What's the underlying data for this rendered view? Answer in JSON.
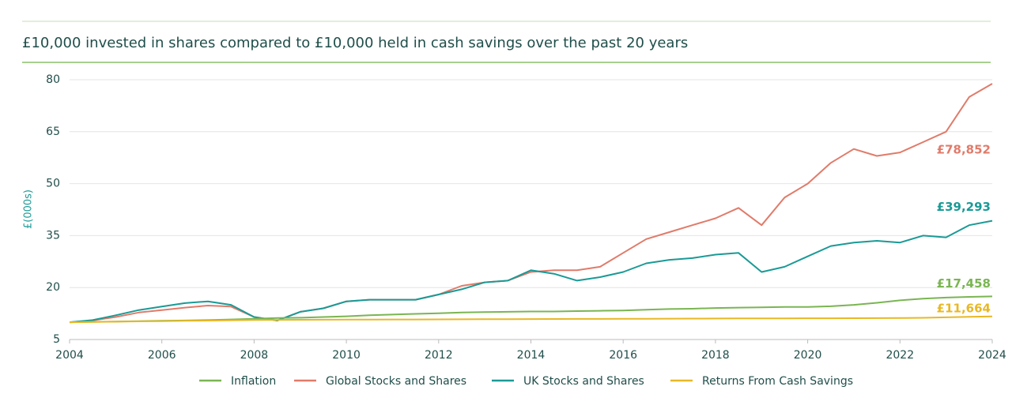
{
  "chart_data": {
    "type": "line",
    "title": "£10,000 invested in shares compared to £10,000 held in cash savings over the past 20 years",
    "y_label": "£(000s)",
    "x": [
      2004,
      2004.5,
      2005,
      2005.5,
      2006,
      2006.5,
      2007,
      2007.5,
      2008,
      2008.5,
      2009,
      2009.5,
      2010,
      2010.5,
      2011,
      2011.5,
      2012,
      2012.5,
      2013,
      2013.5,
      2014,
      2014.5,
      2015,
      2015.5,
      2016,
      2016.5,
      2017,
      2017.5,
      2018,
      2018.5,
      2019,
      2019.5,
      2020,
      2020.5,
      2021,
      2021.5,
      2022,
      2022.5,
      2023,
      2023.5,
      2024
    ],
    "xlim": [
      2004,
      2024
    ],
    "xticks": [
      2004,
      2006,
      2008,
      2010,
      2012,
      2014,
      2016,
      2018,
      2020,
      2022,
      2024
    ],
    "ylim": [
      5,
      80
    ],
    "yticks": [
      5,
      20,
      35,
      50,
      65,
      80
    ],
    "grid": true,
    "series": [
      {
        "name": "Inflation",
        "color": "#7ab552",
        "values": [
          10,
          10.1,
          10.2,
          10.3,
          10.4,
          10.5,
          10.6,
          10.8,
          11,
          11.2,
          11.3,
          11.5,
          11.7,
          12,
          12.2,
          12.4,
          12.6,
          12.8,
          12.9,
          13,
          13.1,
          13.1,
          13.2,
          13.3,
          13.4,
          13.6,
          13.8,
          13.9,
          14.1,
          14.2,
          14.3,
          14.4,
          14.4,
          14.6,
          15,
          15.6,
          16.3,
          16.8,
          17.1,
          17.3,
          17.458
        ],
        "value_labels": [
          null,
          null,
          null,
          null,
          null,
          null,
          null,
          null,
          null,
          null,
          null,
          null,
          null,
          null,
          null,
          null,
          null,
          null,
          null,
          null,
          null,
          null,
          null,
          null,
          null,
          null,
          null,
          null,
          null,
          null,
          null,
          null,
          null,
          null,
          null,
          null,
          null,
          null,
          null,
          null,
          "£17,458"
        ]
      },
      {
        "name": "Global Stocks and Shares",
        "color": "#e07b6a",
        "values": [
          10,
          10.5,
          11.5,
          12.8,
          13.5,
          14.2,
          14.8,
          14.5,
          11.5,
          10.5,
          13,
          14,
          16,
          16.5,
          16.5,
          16.5,
          18,
          20.5,
          21.5,
          22,
          24.5,
          25,
          25,
          26,
          30,
          34,
          36,
          38,
          40,
          43,
          38,
          46,
          50,
          56,
          60,
          58,
          59,
          62,
          65,
          75,
          78.852
        ],
        "value_labels": [
          null,
          null,
          null,
          null,
          null,
          null,
          null,
          null,
          null,
          null,
          null,
          null,
          null,
          null,
          null,
          null,
          null,
          null,
          null,
          null,
          null,
          null,
          null,
          null,
          null,
          null,
          null,
          null,
          null,
          null,
          null,
          null,
          null,
          null,
          null,
          null,
          null,
          null,
          null,
          null,
          "£78,852"
        ]
      },
      {
        "name": "UK Stocks and Shares",
        "color": "#1a9a96",
        "values": [
          10,
          10.6,
          12,
          13.5,
          14.5,
          15.5,
          16,
          15,
          11.5,
          10.5,
          13,
          14,
          16,
          16.5,
          16.5,
          16.5,
          18,
          19.5,
          21.5,
          22,
          25,
          24,
          22,
          23,
          24.5,
          27,
          28,
          28.5,
          29.5,
          30,
          24.5,
          26,
          29,
          32,
          33,
          33.5,
          33,
          35,
          34.5,
          38,
          39.293
        ],
        "value_labels": [
          null,
          null,
          null,
          null,
          null,
          null,
          null,
          null,
          null,
          null,
          null,
          null,
          null,
          null,
          null,
          null,
          null,
          null,
          null,
          null,
          null,
          null,
          null,
          null,
          null,
          null,
          null,
          null,
          null,
          null,
          null,
          null,
          null,
          null,
          null,
          null,
          null,
          null,
          null,
          null,
          "£39,293"
        ]
      },
      {
        "name": "Returns From Cash Savings",
        "color": "#e8b824",
        "values": [
          10,
          10.08,
          10.16,
          10.24,
          10.32,
          10.4,
          10.48,
          10.56,
          10.63,
          10.67,
          10.7,
          10.72,
          10.74,
          10.76,
          10.78,
          10.8,
          10.82,
          10.84,
          10.86,
          10.88,
          10.9,
          10.92,
          10.94,
          10.96,
          10.98,
          11,
          11.02,
          11.04,
          11.06,
          11.08,
          11.1,
          11.12,
          11.13,
          11.14,
          11.15,
          11.17,
          11.2,
          11.28,
          11.4,
          11.55,
          11.664
        ],
        "value_labels": [
          null,
          null,
          null,
          null,
          null,
          null,
          null,
          null,
          null,
          null,
          null,
          null,
          null,
          null,
          null,
          null,
          null,
          null,
          null,
          null,
          null,
          null,
          null,
          null,
          null,
          null,
          null,
          null,
          null,
          null,
          null,
          null,
          null,
          null,
          null,
          null,
          null,
          null,
          null,
          null,
          "£11,664"
        ]
      }
    ]
  }
}
